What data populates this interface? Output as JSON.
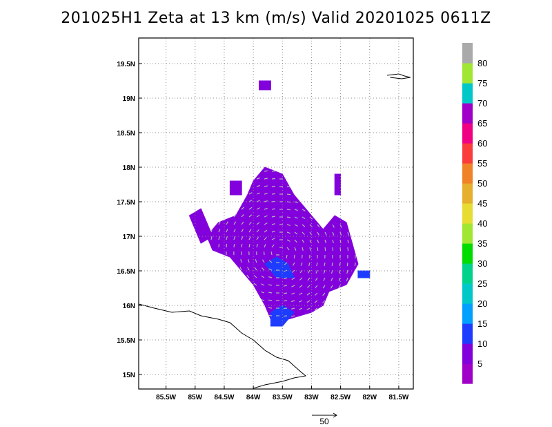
{
  "title": "201025H1 Zeta at 13 km (m/s) Valid 20201025 0611Z",
  "chart_data": {
    "type": "heatmap",
    "title": "201025H1 Zeta at 13 km (m/s) Valid 20201025 0611Z",
    "x_tick_labels": [
      "85.5W",
      "85W",
      "84.5W",
      "84W",
      "83.5W",
      "83W",
      "82.5W",
      "82W",
      "81.5W"
    ],
    "x_tick_values": [
      -85.5,
      -85.0,
      -84.5,
      -84.0,
      -83.5,
      -83.0,
      -82.5,
      -82.0,
      -81.5
    ],
    "y_tick_labels": [
      "15N",
      "15.5N",
      "16N",
      "16.5N",
      "17N",
      "17.5N",
      "18N",
      "18.5N",
      "19N",
      "19.5N"
    ],
    "y_tick_values": [
      15.0,
      15.5,
      16.0,
      16.5,
      17.0,
      17.5,
      18.0,
      18.5,
      19.0,
      19.5
    ],
    "xlim": [
      -85.97,
      -81.25
    ],
    "ylim": [
      14.79,
      19.87
    ],
    "grid": true,
    "colorbar": {
      "position": "right",
      "labels": [
        "5",
        "10",
        "15",
        "20",
        "25",
        "30",
        "35",
        "40",
        "45",
        "50",
        "55",
        "60",
        "65",
        "70",
        "75",
        "80"
      ],
      "bounds": [
        0,
        5,
        10,
        15,
        20,
        25,
        30,
        35,
        40,
        45,
        50,
        55,
        60,
        65,
        70,
        75,
        80,
        85
      ],
      "colors": [
        "#a000c8",
        "#8200dc",
        "#1e3cff",
        "#00a0ff",
        "#00c8c8",
        "#00d28c",
        "#00dc00",
        "#a0e632",
        "#e6dc32",
        "#e6af2d",
        "#f08228",
        "#fa3c3c",
        "#f00082",
        "#a000c8",
        "#00c8c8",
        "#a0e632",
        "#aaaaaa"
      ]
    },
    "regions": [
      {
        "level": "5",
        "polygon": [
          [
            -84.8,
            17.0
          ],
          [
            -84.6,
            17.2
          ],
          [
            -84.3,
            17.3
          ],
          [
            -84.1,
            17.6
          ],
          [
            -84.0,
            17.8
          ],
          [
            -83.8,
            18.0
          ],
          [
            -83.5,
            17.9
          ],
          [
            -83.3,
            17.6
          ],
          [
            -83.0,
            17.3
          ],
          [
            -82.8,
            17.1
          ],
          [
            -82.6,
            17.3
          ],
          [
            -82.4,
            17.2
          ],
          [
            -82.3,
            16.9
          ],
          [
            -82.2,
            16.6
          ],
          [
            -82.4,
            16.3
          ],
          [
            -82.7,
            16.2
          ],
          [
            -82.8,
            16.0
          ],
          [
            -83.0,
            15.9
          ],
          [
            -83.4,
            15.8
          ],
          [
            -83.7,
            15.8
          ],
          [
            -83.8,
            16.0
          ],
          [
            -84.0,
            16.3
          ],
          [
            -84.2,
            16.5
          ],
          [
            -84.4,
            16.7
          ],
          [
            -84.7,
            16.8
          ]
        ]
      },
      {
        "level": "5",
        "polygon": [
          [
            -85.1,
            17.3
          ],
          [
            -84.9,
            17.4
          ],
          [
            -84.8,
            17.2
          ],
          [
            -84.7,
            17.0
          ],
          [
            -84.9,
            16.9
          ],
          [
            -85.0,
            17.1
          ]
        ]
      },
      {
        "level": "5",
        "polygon": [
          [
            -84.4,
            17.8
          ],
          [
            -84.2,
            17.8
          ],
          [
            -84.2,
            17.6
          ],
          [
            -84.4,
            17.6
          ]
        ]
      },
      {
        "level": "5",
        "polygon": [
          [
            -82.6,
            17.9
          ],
          [
            -82.5,
            17.9
          ],
          [
            -82.5,
            17.6
          ],
          [
            -82.6,
            17.6
          ]
        ]
      },
      {
        "level": "5",
        "polygon": [
          [
            -83.9,
            19.25
          ],
          [
            -83.7,
            19.25
          ],
          [
            -83.7,
            19.12
          ],
          [
            -83.9,
            19.12
          ]
        ]
      },
      {
        "level": "10",
        "polygon": [
          [
            -83.8,
            16.6
          ],
          [
            -83.6,
            16.7
          ],
          [
            -83.4,
            16.6
          ],
          [
            -83.3,
            16.4
          ],
          [
            -83.6,
            16.4
          ]
        ]
      },
      {
        "level": "10",
        "polygon": [
          [
            -83.7,
            15.9
          ],
          [
            -83.5,
            16.0
          ],
          [
            -83.3,
            15.9
          ],
          [
            -83.5,
            15.7
          ],
          [
            -83.7,
            15.7
          ]
        ]
      },
      {
        "level": "10",
        "polygon": [
          [
            -82.2,
            16.5
          ],
          [
            -82.0,
            16.5
          ],
          [
            -82.0,
            16.4
          ],
          [
            -82.2,
            16.4
          ]
        ]
      }
    ]
  },
  "vector_key": {
    "label": "50"
  }
}
